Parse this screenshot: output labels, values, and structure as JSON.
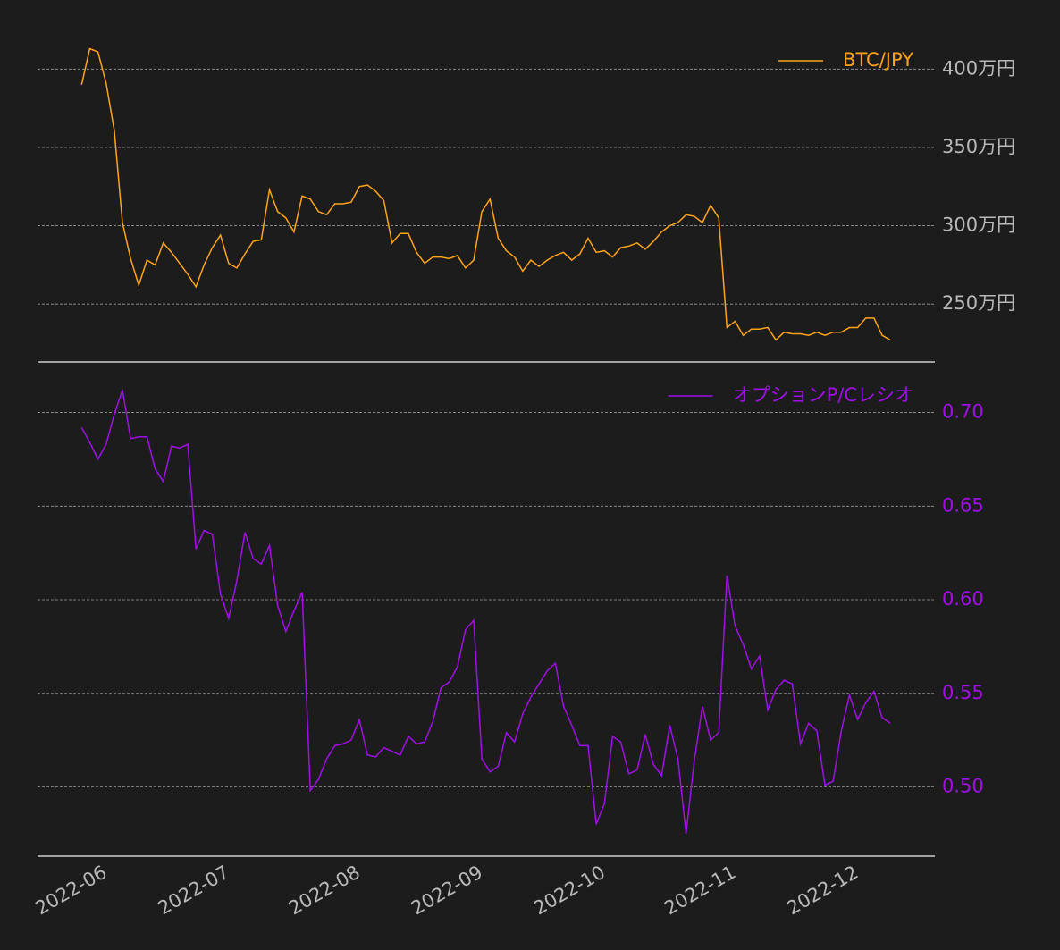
{
  "chart_data": {
    "type": "line",
    "categories": [
      "2022-06",
      null,
      null,
      null,
      null,
      null,
      null,
      null,
      null,
      null,
      null,
      null,
      null,
      null,
      null,
      "2022-07",
      null,
      null,
      null,
      null,
      null,
      null,
      null,
      null,
      null,
      null,
      null,
      null,
      null,
      null,
      null,
      "2022-08",
      null,
      null,
      null,
      null,
      null,
      null,
      null,
      null,
      null,
      null,
      null,
      null,
      null,
      null,
      "2022-09",
      null,
      null,
      null,
      null,
      null,
      null,
      null,
      null,
      null,
      null,
      null,
      null,
      null,
      null,
      "2022-10",
      null,
      null,
      null,
      null,
      null,
      null,
      null,
      null,
      null,
      null,
      null,
      null,
      null,
      null,
      null,
      "2022-11",
      null,
      null,
      null,
      null,
      null,
      null,
      null,
      null,
      null,
      null,
      null,
      null,
      null,
      null,
      "2022-12",
      null,
      null,
      null,
      null,
      null,
      null,
      null,
      null,
      null
    ],
    "series": [
      {
        "name": "BTC/JPY",
        "color": "#ffa31a",
        "values": [
          null,
          null,
          390,
          413,
          411,
          391,
          361,
          302,
          279,
          262,
          278,
          275,
          289,
          283,
          276,
          269,
          261,
          275,
          286,
          294,
          276,
          273,
          282,
          290,
          291,
          323,
          309,
          305,
          296,
          319,
          317,
          309,
          307,
          314,
          314,
          315,
          325,
          326,
          322,
          316,
          289,
          295,
          295,
          283,
          276,
          280,
          280,
          279,
          281,
          273,
          278,
          309,
          317,
          292,
          284,
          280,
          271,
          278,
          274,
          278,
          281,
          283,
          278,
          282,
          292,
          283,
          284,
          280,
          286,
          287,
          289,
          285,
          290,
          296,
          300,
          302,
          307,
          306,
          302,
          313,
          305,
          235,
          239,
          230,
          234,
          234,
          235,
          227,
          232,
          231,
          231,
          230,
          232,
          230,
          232,
          232,
          235,
          235,
          241,
          241,
          230,
          227
        ]
      },
      {
        "name": "オプションP/Cレシオ",
        "color": "#a10fe8",
        "axis": "y2",
        "values": [
          null,
          null,
          0.692,
          0.684,
          0.675,
          0.683,
          0.699,
          0.712,
          0.686,
          0.687,
          0.687,
          0.67,
          0.663,
          0.682,
          0.681,
          0.683,
          0.627,
          0.637,
          0.635,
          0.603,
          0.59,
          0.61,
          0.636,
          0.622,
          0.619,
          0.629,
          0.597,
          0.583,
          0.594,
          0.604,
          0.498,
          0.504,
          0.515,
          0.522,
          0.523,
          0.525,
          0.536,
          0.517,
          0.516,
          0.521,
          0.519,
          0.517,
          0.527,
          0.523,
          0.524,
          0.535,
          0.553,
          0.556,
          0.564,
          0.584,
          0.589,
          0.515,
          0.508,
          0.511,
          0.529,
          0.524,
          0.539,
          0.548,
          0.555,
          0.562,
          0.566,
          0.543,
          0.533,
          0.522,
          0.522,
          0.48,
          0.491,
          0.527,
          0.524,
          0.507,
          0.509,
          0.528,
          0.512,
          0.506,
          0.533,
          0.515,
          0.475,
          0.514,
          0.543,
          0.525,
          0.529,
          0.613,
          0.586,
          0.576,
          0.563,
          0.57,
          0.541,
          0.552,
          0.557,
          0.555,
          0.523,
          0.534,
          0.53,
          0.501,
          0.503,
          0.53,
          0.549,
          0.536,
          0.545,
          0.551,
          0.537,
          0.534
        ]
      }
    ],
    "ylim": [
      213,
      427
    ],
    "yticks": [
      {
        "value": 250,
        "label": "250万円"
      },
      {
        "value": 300,
        "label": "300万円"
      },
      {
        "value": 350,
        "label": "350万円"
      },
      {
        "value": 400,
        "label": "400万円"
      }
    ],
    "y2lim": [
      0.463,
      0.727
    ],
    "y2ticks": [
      {
        "value": 0.5,
        "label": "0.50"
      },
      {
        "value": 0.55,
        "label": "0.55"
      },
      {
        "value": 0.6,
        "label": "0.60"
      },
      {
        "value": 0.65,
        "label": "0.65"
      },
      {
        "value": 0.7,
        "label": "0.70"
      }
    ],
    "grid": true,
    "legend": "upper right"
  }
}
